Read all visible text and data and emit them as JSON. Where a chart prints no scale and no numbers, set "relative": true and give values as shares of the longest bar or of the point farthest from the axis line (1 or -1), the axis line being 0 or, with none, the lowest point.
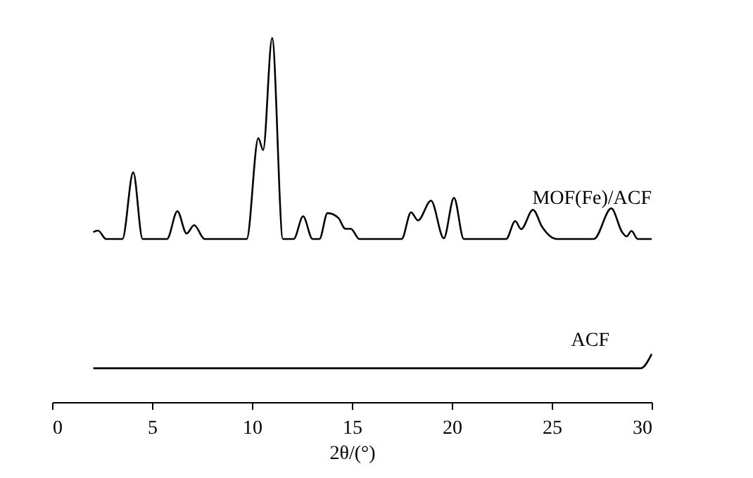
{
  "chart_data": {
    "type": "line",
    "relative": true,
    "xlabel": "2θ/(°)",
    "xlim": [
      0,
      30
    ],
    "xticks": [
      0,
      5,
      10,
      15,
      20,
      25,
      30
    ],
    "grid": false,
    "legend": false,
    "marker": "none",
    "line_style": "solid",
    "series": [
      {
        "name": "MOF(Fe)/ACF",
        "color": "#000000",
        "x": [
          2.06,
          2.3,
          2.7,
          3.52,
          4.06,
          4.53,
          5.75,
          6.27,
          6.73,
          7.11,
          7.63,
          9.74,
          10.32,
          10.56,
          11.01,
          11.55,
          12.09,
          12.56,
          13.03,
          13.38,
          13.78,
          14.32,
          14.67,
          14.95,
          15.37,
          17.49,
          17.96,
          18.31,
          18.96,
          19.6,
          20.11,
          20.6,
          22.72,
          23.17,
          23.47,
          24.06,
          24.53,
          25.23,
          27.11,
          27.98,
          28.52,
          28.75,
          28.99,
          29.3,
          30.0
        ],
        "values": [
          0.467,
          0.471,
          0.448,
          0.448,
          0.631,
          0.448,
          0.448,
          0.524,
          0.463,
          0.486,
          0.448,
          0.448,
          0.725,
          0.692,
          1.0,
          0.448,
          0.448,
          0.51,
          0.448,
          0.448,
          0.519,
          0.506,
          0.476,
          0.476,
          0.448,
          0.448,
          0.521,
          0.499,
          0.553,
          0.45,
          0.561,
          0.448,
          0.448,
          0.497,
          0.475,
          0.528,
          0.48,
          0.448,
          0.448,
          0.532,
          0.467,
          0.455,
          0.47,
          0.448,
          0.448
        ]
      },
      {
        "name": "ACF",
        "color": "#000000",
        "x": [
          2.06,
          29.46,
          30.0
        ],
        "values": [
          0.093,
          0.093,
          0.132
        ]
      }
    ]
  }
}
